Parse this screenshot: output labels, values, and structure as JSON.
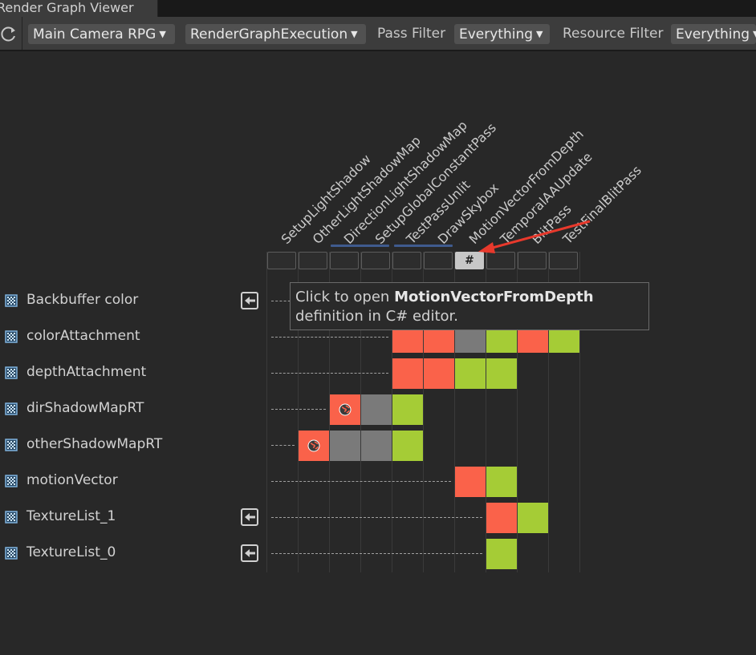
{
  "window": {
    "tab_title": "Render Graph Viewer"
  },
  "toolbar": {
    "camera": "Main Camera RPG",
    "execution": "RenderGraphExecution",
    "pass_filter_label": "Pass Filter",
    "pass_filter_value": "Everything",
    "resource_filter_label": "Resource Filter",
    "resource_filter_value": "Everything"
  },
  "passes": [
    "SetupLightShadow",
    "OtherLightShadowMap",
    "DirectionLightShadowMap",
    "SetupGlobalConstantPass",
    "TestPassUnlit",
    "DrawSkybox",
    "MotionVectorFromDepth",
    "TemporalAAUpdate",
    "BlitPass",
    "TestFinalBlitPass"
  ],
  "selected_pass_glyph": "#",
  "resources": [
    {
      "name": "Backbuffer color",
      "imported": true
    },
    {
      "name": "colorAttachment",
      "imported": false
    },
    {
      "name": "depthAttachment",
      "imported": false
    },
    {
      "name": "dirShadowMapRT",
      "imported": false
    },
    {
      "name": "otherShadowMapRT",
      "imported": false
    },
    {
      "name": "motionVector",
      "imported": false
    },
    {
      "name": "TextureList_1",
      "imported": true
    },
    {
      "name": "TextureList_0",
      "imported": true
    }
  ],
  "usage_legend": {
    "write": "#fa624a",
    "read": "#a5cc36",
    "unused": "#7a7a7a"
  },
  "usage": [
    [],
    [
      [
        4,
        "write"
      ],
      [
        5,
        "write"
      ],
      [
        6,
        "unused"
      ],
      [
        7,
        "read"
      ],
      [
        8,
        "write"
      ],
      [
        9,
        "read"
      ]
    ],
    [
      [
        4,
        "write"
      ],
      [
        5,
        "write"
      ],
      [
        6,
        "read"
      ],
      [
        7,
        "read"
      ]
    ],
    [
      [
        2,
        "write",
        true
      ],
      [
        3,
        "unused"
      ],
      [
        4,
        "read"
      ]
    ],
    [
      [
        1,
        "write",
        true
      ],
      [
        2,
        "unused"
      ],
      [
        3,
        "unused"
      ],
      [
        4,
        "read"
      ]
    ],
    [
      [
        6,
        "write"
      ],
      [
        7,
        "read"
      ]
    ],
    [
      [
        7,
        "write"
      ],
      [
        8,
        "read"
      ]
    ],
    [
      [
        7,
        "read"
      ]
    ]
  ],
  "tooltip": {
    "prefix": "Click to open",
    "pass_name": "MotionVectorFromDepth",
    "suffix": "definition in C# editor."
  },
  "colors": {
    "annotation_arrow": "#e8392c",
    "pass_group_bar": "#3f5b8e"
  }
}
